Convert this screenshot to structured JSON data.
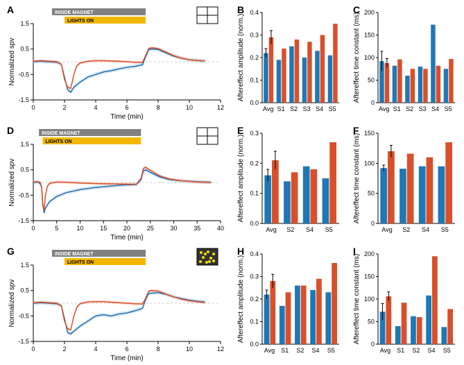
{
  "colors": {
    "series_a": "#1f6fb2",
    "series_b": "#d94f2a",
    "series_a_band": "#9fc5e8",
    "series_b_band": "#f4b59b",
    "grid": "#cccccc",
    "axis": "#000000",
    "inside_magnet": "#808080",
    "lights_on": "#f2b700",
    "background": "#ffffff",
    "bar_blue": "#1f77b4",
    "bar_orange": "#d94f2a"
  },
  "line_panels": {
    "A": {
      "label": "A",
      "xlabel": "Time (min)",
      "ylabel": "Normalized spv",
      "xlim": [
        0,
        12
      ],
      "xtick_step": 2,
      "ylim": [
        -1.5,
        1.5
      ],
      "ytick_step": 1,
      "magnet": {
        "label": "INSIDE MAGNET",
        "x0": 1.2,
        "x1": 7.2
      },
      "lights": {
        "label": "LIGHTS ON",
        "x0": 2.0,
        "x1": 7.2
      },
      "icon": "cross",
      "series_blue": [
        [
          0,
          0.0
        ],
        [
          0.5,
          0.02
        ],
        [
          1,
          0.0
        ],
        [
          1.5,
          -0.02
        ],
        [
          1.8,
          -0.1
        ],
        [
          2.0,
          -0.6
        ],
        [
          2.2,
          -1.1
        ],
        [
          2.4,
          -1.2
        ],
        [
          2.6,
          -1.0
        ],
        [
          3.0,
          -0.8
        ],
        [
          3.5,
          -0.6
        ],
        [
          4.0,
          -0.5
        ],
        [
          4.5,
          -0.4
        ],
        [
          5.0,
          -0.35
        ],
        [
          5.5,
          -0.28
        ],
        [
          6.0,
          -0.22
        ],
        [
          6.5,
          -0.18
        ],
        [
          7.0,
          -0.12
        ],
        [
          7.2,
          0.2
        ],
        [
          7.4,
          0.48
        ],
        [
          7.6,
          0.5
        ],
        [
          8.0,
          0.48
        ],
        [
          8.5,
          0.35
        ],
        [
          9.0,
          0.22
        ],
        [
          9.5,
          0.14
        ],
        [
          10.0,
          0.08
        ],
        [
          10.5,
          0.05
        ],
        [
          11.0,
          0.03
        ]
      ],
      "series_red": [
        [
          0,
          0.02
        ],
        [
          0.5,
          0.04
        ],
        [
          1,
          0.02
        ],
        [
          1.5,
          0.0
        ],
        [
          1.8,
          -0.1
        ],
        [
          2.0,
          -0.7
        ],
        [
          2.2,
          -1.0
        ],
        [
          2.4,
          -1.05
        ],
        [
          2.6,
          -0.5
        ],
        [
          2.8,
          -0.15
        ],
        [
          3.0,
          -0.05
        ],
        [
          3.5,
          0.02
        ],
        [
          4.0,
          0.04
        ],
        [
          4.5,
          0.04
        ],
        [
          5.0,
          0.03
        ],
        [
          5.5,
          0.02
        ],
        [
          6.0,
          0.0
        ],
        [
          6.5,
          -0.02
        ],
        [
          7.0,
          -0.03
        ],
        [
          7.2,
          0.25
        ],
        [
          7.4,
          0.52
        ],
        [
          7.6,
          0.55
        ],
        [
          8.0,
          0.52
        ],
        [
          8.5,
          0.38
        ],
        [
          9.0,
          0.24
        ],
        [
          9.5,
          0.14
        ],
        [
          10.0,
          0.08
        ],
        [
          10.5,
          0.05
        ],
        [
          11.0,
          0.03
        ]
      ]
    },
    "D": {
      "label": "D",
      "xlabel": "Time (min)",
      "ylabel": "Normalized spv",
      "xlim": [
        0,
        40
      ],
      "xtick_step": 5,
      "ylim": [
        -1.5,
        1.5
      ],
      "ytick_step": 1,
      "magnet": {
        "label": "INSIDE MAGNET",
        "x0": 1.2,
        "x1": 23
      },
      "lights": {
        "label": "LIGHTS ON",
        "x0": 2.0,
        "x1": 23
      },
      "icon": "cross",
      "series_blue": [
        [
          0,
          0.0
        ],
        [
          1,
          0.02
        ],
        [
          1.5,
          -0.05
        ],
        [
          1.8,
          -0.2
        ],
        [
          2.0,
          -0.8
        ],
        [
          2.3,
          -1.2
        ],
        [
          2.6,
          -1.0
        ],
        [
          3.5,
          -0.75
        ],
        [
          5,
          -0.55
        ],
        [
          7,
          -0.4
        ],
        [
          10,
          -0.28
        ],
        [
          13,
          -0.2
        ],
        [
          16,
          -0.15
        ],
        [
          19,
          -0.1
        ],
        [
          22,
          -0.08
        ],
        [
          23,
          0.1
        ],
        [
          23.5,
          0.45
        ],
        [
          24,
          0.5
        ],
        [
          25,
          0.4
        ],
        [
          27,
          0.22
        ],
        [
          29,
          0.12
        ],
        [
          32,
          0.06
        ],
        [
          35,
          0.03
        ],
        [
          38,
          0.01
        ]
      ],
      "series_red": [
        [
          0,
          0.02
        ],
        [
          1,
          0.03
        ],
        [
          1.5,
          0.0
        ],
        [
          1.8,
          -0.2
        ],
        [
          2.0,
          -0.9
        ],
        [
          2.3,
          -1.1
        ],
        [
          2.6,
          -0.5
        ],
        [
          3.0,
          -0.15
        ],
        [
          3.5,
          -0.03
        ],
        [
          5,
          0.02
        ],
        [
          7,
          0.01
        ],
        [
          10,
          -0.02
        ],
        [
          13,
          -0.04
        ],
        [
          16,
          -0.05
        ],
        [
          19,
          -0.06
        ],
        [
          22,
          -0.07
        ],
        [
          23,
          0.15
        ],
        [
          23.5,
          0.55
        ],
        [
          24,
          0.6
        ],
        [
          25,
          0.48
        ],
        [
          27,
          0.26
        ],
        [
          29,
          0.14
        ],
        [
          32,
          0.06
        ],
        [
          35,
          0.02
        ],
        [
          38,
          0.0
        ]
      ]
    },
    "G": {
      "label": "G",
      "xlabel": "Time (min)",
      "ylabel": "Normalized spv",
      "xlim": [
        0,
        12
      ],
      "xtick_step": 2,
      "ylim": [
        -1.5,
        1.5
      ],
      "ytick_step": 1,
      "magnet": {
        "label": "INSIDE MAGNET",
        "x0": 1.2,
        "x1": 7.2
      },
      "lights": {
        "label": "LIGHTS ON",
        "x0": 2.0,
        "x1": 7.2
      },
      "icon": "dots",
      "series_blue": [
        [
          0,
          0.0
        ],
        [
          0.5,
          0.02
        ],
        [
          1,
          0.0
        ],
        [
          1.5,
          -0.02
        ],
        [
          1.8,
          -0.1
        ],
        [
          2.0,
          -0.6
        ],
        [
          2.2,
          -1.15
        ],
        [
          2.4,
          -1.2
        ],
        [
          2.6,
          -1.1
        ],
        [
          3.0,
          -0.9
        ],
        [
          3.5,
          -0.7
        ],
        [
          4.0,
          -0.5
        ],
        [
          4.5,
          -0.45
        ],
        [
          5.0,
          -0.5
        ],
        [
          5.5,
          -0.42
        ],
        [
          6.0,
          -0.38
        ],
        [
          6.5,
          -0.3
        ],
        [
          7.0,
          -0.2
        ],
        [
          7.2,
          0.15
        ],
        [
          7.4,
          0.38
        ],
        [
          7.6,
          0.4
        ],
        [
          8.0,
          0.42
        ],
        [
          8.5,
          0.35
        ],
        [
          9.0,
          0.25
        ],
        [
          9.5,
          0.18
        ],
        [
          10.0,
          0.12
        ],
        [
          10.5,
          0.08
        ],
        [
          11.0,
          0.05
        ]
      ],
      "series_red": [
        [
          0,
          0.02
        ],
        [
          0.5,
          0.04
        ],
        [
          1,
          0.02
        ],
        [
          1.5,
          0.0
        ],
        [
          1.8,
          -0.1
        ],
        [
          2.0,
          -0.7
        ],
        [
          2.2,
          -1.0
        ],
        [
          2.4,
          -1.05
        ],
        [
          2.6,
          -0.5
        ],
        [
          2.8,
          -0.15
        ],
        [
          3.0,
          -0.02
        ],
        [
          3.5,
          0.05
        ],
        [
          4.0,
          0.06
        ],
        [
          4.5,
          0.06
        ],
        [
          5.0,
          0.04
        ],
        [
          5.5,
          0.02
        ],
        [
          6.0,
          0.0
        ],
        [
          6.5,
          -0.02
        ],
        [
          7.0,
          -0.03
        ],
        [
          7.2,
          0.2
        ],
        [
          7.4,
          0.48
        ],
        [
          7.6,
          0.5
        ],
        [
          8.0,
          0.48
        ],
        [
          8.5,
          0.36
        ],
        [
          9.0,
          0.25
        ],
        [
          9.5,
          0.16
        ],
        [
          10.0,
          0.1
        ],
        [
          10.5,
          0.06
        ],
        [
          11.0,
          0.03
        ]
      ]
    }
  },
  "bar_panels": {
    "B": {
      "label": "B",
      "ylabel": "Aftereffect amplitude (norm.)",
      "ylim": [
        0,
        0.4
      ],
      "ytick_step": 0.1,
      "categories": [
        "Avg",
        "S1",
        "S2",
        "S3",
        "S4",
        "S5"
      ],
      "blue": [
        0.22,
        0.19,
        0.25,
        0.2,
        0.23,
        0.21
      ],
      "orange": [
        0.29,
        0.24,
        0.28,
        0.27,
        0.3,
        0.35
      ],
      "err_blue": [
        0.02,
        0,
        0,
        0,
        0,
        0
      ],
      "err_orange": [
        0.03,
        0,
        0,
        0,
        0,
        0
      ]
    },
    "C": {
      "label": "C",
      "ylabel": "Aftereffect time constant (ms)",
      "ylim": [
        0,
        200
      ],
      "ytick_step": 50,
      "categories": [
        "Avg",
        "S1",
        "S2",
        "S3",
        "S4",
        "S5"
      ],
      "blue": [
        92,
        82,
        60,
        80,
        173,
        75
      ],
      "orange": [
        88,
        96,
        75,
        75,
        82,
        97
      ],
      "err_blue": [
        22,
        0,
        0,
        0,
        0,
        0
      ],
      "err_orange": [
        10,
        0,
        0,
        0,
        0,
        0
      ]
    },
    "E": {
      "label": "E",
      "ylabel": "Aftereffect amplitude (norm.)",
      "ylim": [
        0,
        0.3
      ],
      "ytick_step": 0.1,
      "categories": [
        "Avg",
        "S2",
        "S4",
        "S5"
      ],
      "blue": [
        0.16,
        0.14,
        0.19,
        0.15
      ],
      "orange": [
        0.21,
        0.17,
        0.18,
        0.27
      ],
      "err_blue": [
        0.02,
        0,
        0,
        0
      ],
      "err_orange": [
        0.03,
        0,
        0,
        0
      ]
    },
    "F": {
      "label": "F",
      "ylabel": "Aftereffect time constant (ms)",
      "ylim": [
        0,
        150
      ],
      "ytick_step": 50,
      "categories": [
        "Avg",
        "S2",
        "S4",
        "S5"
      ],
      "blue": [
        92,
        91,
        95,
        95
      ],
      "orange": [
        120,
        116,
        110,
        135
      ],
      "err_blue": [
        5,
        0,
        0,
        0
      ],
      "err_orange": [
        10,
        0,
        0,
        0
      ]
    },
    "H": {
      "label": "H",
      "ylabel": "Aftereffect amplitude (norm.)",
      "ylim": [
        0,
        0.4
      ],
      "ytick_step": 0.1,
      "categories": [
        "Avg",
        "S1",
        "S2",
        "S4",
        "S5"
      ],
      "blue": [
        0.22,
        0.17,
        0.26,
        0.24,
        0.23
      ],
      "orange": [
        0.28,
        0.23,
        0.26,
        0.29,
        0.36
      ],
      "err_blue": [
        0.02,
        0,
        0,
        0,
        0
      ],
      "err_orange": [
        0.03,
        0,
        0,
        0,
        0
      ]
    },
    "I": {
      "label": "I",
      "ylabel": "Aftereffect time constant (ms)",
      "ylim": [
        0,
        200
      ],
      "ytick_step": 50,
      "categories": [
        "Avg",
        "S1",
        "S2",
        "S4",
        "S5"
      ],
      "blue": [
        72,
        40,
        62,
        108,
        38
      ],
      "orange": [
        106,
        92,
        60,
        195,
        78
      ],
      "err_blue": [
        18,
        0,
        0,
        0,
        0
      ],
      "err_orange": [
        10,
        0,
        0,
        0,
        0
      ]
    }
  },
  "layout": [
    "A",
    "B",
    "C",
    "D",
    "E",
    "F",
    "G",
    "H",
    "I"
  ]
}
